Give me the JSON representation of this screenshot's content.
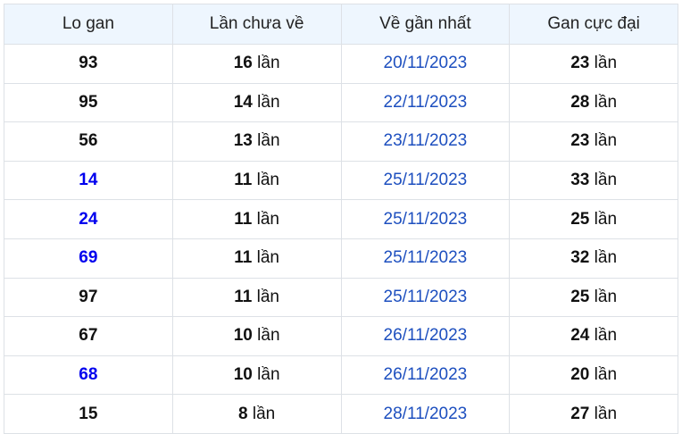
{
  "colors": {
    "header_bg": "#eef6fe",
    "date": "#1d4fbf",
    "highlight": "#0000ee"
  },
  "headers": [
    "Lo gan",
    "Lần chưa về",
    "Về gần nhất",
    "Gan cực đại"
  ],
  "unit": "lần",
  "rows": [
    {
      "lo": "93",
      "highlight": false,
      "count": "16",
      "last": "20/11/2023",
      "max": "23"
    },
    {
      "lo": "95",
      "highlight": false,
      "count": "14",
      "last": "22/11/2023",
      "max": "28"
    },
    {
      "lo": "56",
      "highlight": false,
      "count": "13",
      "last": "23/11/2023",
      "max": "23"
    },
    {
      "lo": "14",
      "highlight": true,
      "count": "11",
      "last": "25/11/2023",
      "max": "33"
    },
    {
      "lo": "24",
      "highlight": true,
      "count": "11",
      "last": "25/11/2023",
      "max": "25"
    },
    {
      "lo": "69",
      "highlight": true,
      "count": "11",
      "last": "25/11/2023",
      "max": "32"
    },
    {
      "lo": "97",
      "highlight": false,
      "count": "11",
      "last": "25/11/2023",
      "max": "25"
    },
    {
      "lo": "67",
      "highlight": false,
      "count": "10",
      "last": "26/11/2023",
      "max": "24"
    },
    {
      "lo": "68",
      "highlight": true,
      "count": "10",
      "last": "26/11/2023",
      "max": "20"
    },
    {
      "lo": "15",
      "highlight": false,
      "count": "8",
      "last": "28/11/2023",
      "max": "27"
    }
  ]
}
